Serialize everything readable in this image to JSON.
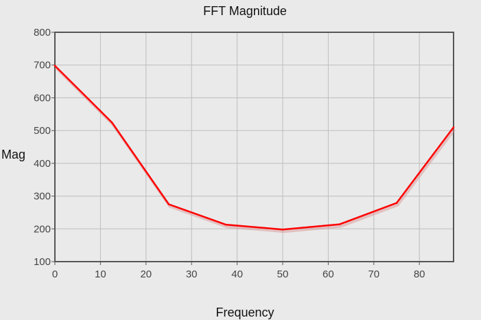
{
  "chart_data": {
    "type": "line",
    "title": "FFT Magnitude",
    "xlabel": "Frequency",
    "ylabel": "Mag",
    "xlim": [
      0,
      87.5
    ],
    "ylim": [
      100,
      800
    ],
    "x_ticks": [
      "0",
      "10",
      "20",
      "30",
      "40",
      "50",
      "60",
      "70",
      "80"
    ],
    "y_ticks": [
      "100",
      "200",
      "300",
      "400",
      "500",
      "600",
      "700",
      "800"
    ],
    "grid": true,
    "legend": "none",
    "colors": {
      "series": "#ff0000",
      "background": "#eaeaea",
      "grid": "#bdbdbd",
      "frame": "#555555"
    },
    "series": [
      {
        "x": [
          0,
          12.5,
          25,
          37.5,
          50,
          62.5,
          75,
          87.5
        ],
        "y": [
          698,
          525,
          275,
          213,
          198,
          214,
          279,
          510
        ]
      }
    ]
  }
}
